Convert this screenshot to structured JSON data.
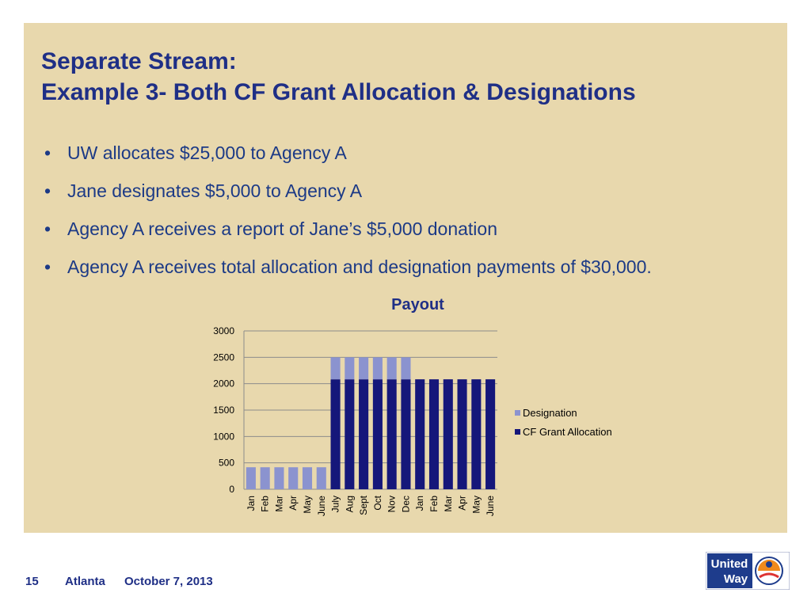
{
  "slide": {
    "title_line1": "Separate Stream:",
    "title_line2": "Example 3- Both CF Grant Allocation & Designations",
    "bullets": [
      "UW allocates $25,000 to Agency A",
      "Jane designates $5,000 to Agency A",
      "Agency A receives a report of Jane’s $5,000 donation",
      "Agency A receives total  allocation and designation payments of $30,000."
    ]
  },
  "footer": {
    "page_number": "15",
    "location": "Atlanta",
    "date": "October 7, 2013"
  },
  "logo": {
    "line1": "United",
    "line2": "Way"
  },
  "colors": {
    "designation": "#8b93cf",
    "cf_grant_allocation": "#15177a",
    "title": "#1f2f86",
    "background": "#e8d8ad"
  },
  "chart_data": {
    "type": "bar",
    "stacked": true,
    "title": "Payout",
    "categories": [
      "Jan",
      "Feb",
      "Mar",
      "Apr",
      "May",
      "June",
      "July",
      "Aug",
      "Sept",
      "Oct",
      "Nov",
      "Dec",
      "Jan",
      "Feb",
      "Mar",
      "Apr",
      "May",
      "June"
    ],
    "series": [
      {
        "name": "Designation",
        "color": "#8b93cf",
        "values": [
          417,
          417,
          417,
          417,
          417,
          417,
          417,
          417,
          417,
          417,
          417,
          417,
          0,
          0,
          0,
          0,
          0,
          0
        ]
      },
      {
        "name": "CF Grant Allocation",
        "color": "#15177a",
        "values": [
          0,
          0,
          0,
          0,
          0,
          0,
          2083,
          2083,
          2083,
          2083,
          2083,
          2083,
          2083,
          2083,
          2083,
          2083,
          2083,
          2083
        ]
      }
    ],
    "ylim": [
      0,
      3000
    ],
    "yticks": [
      0,
      500,
      1000,
      1500,
      2000,
      2500,
      3000
    ],
    "grid": true,
    "legend_position": "right"
  }
}
